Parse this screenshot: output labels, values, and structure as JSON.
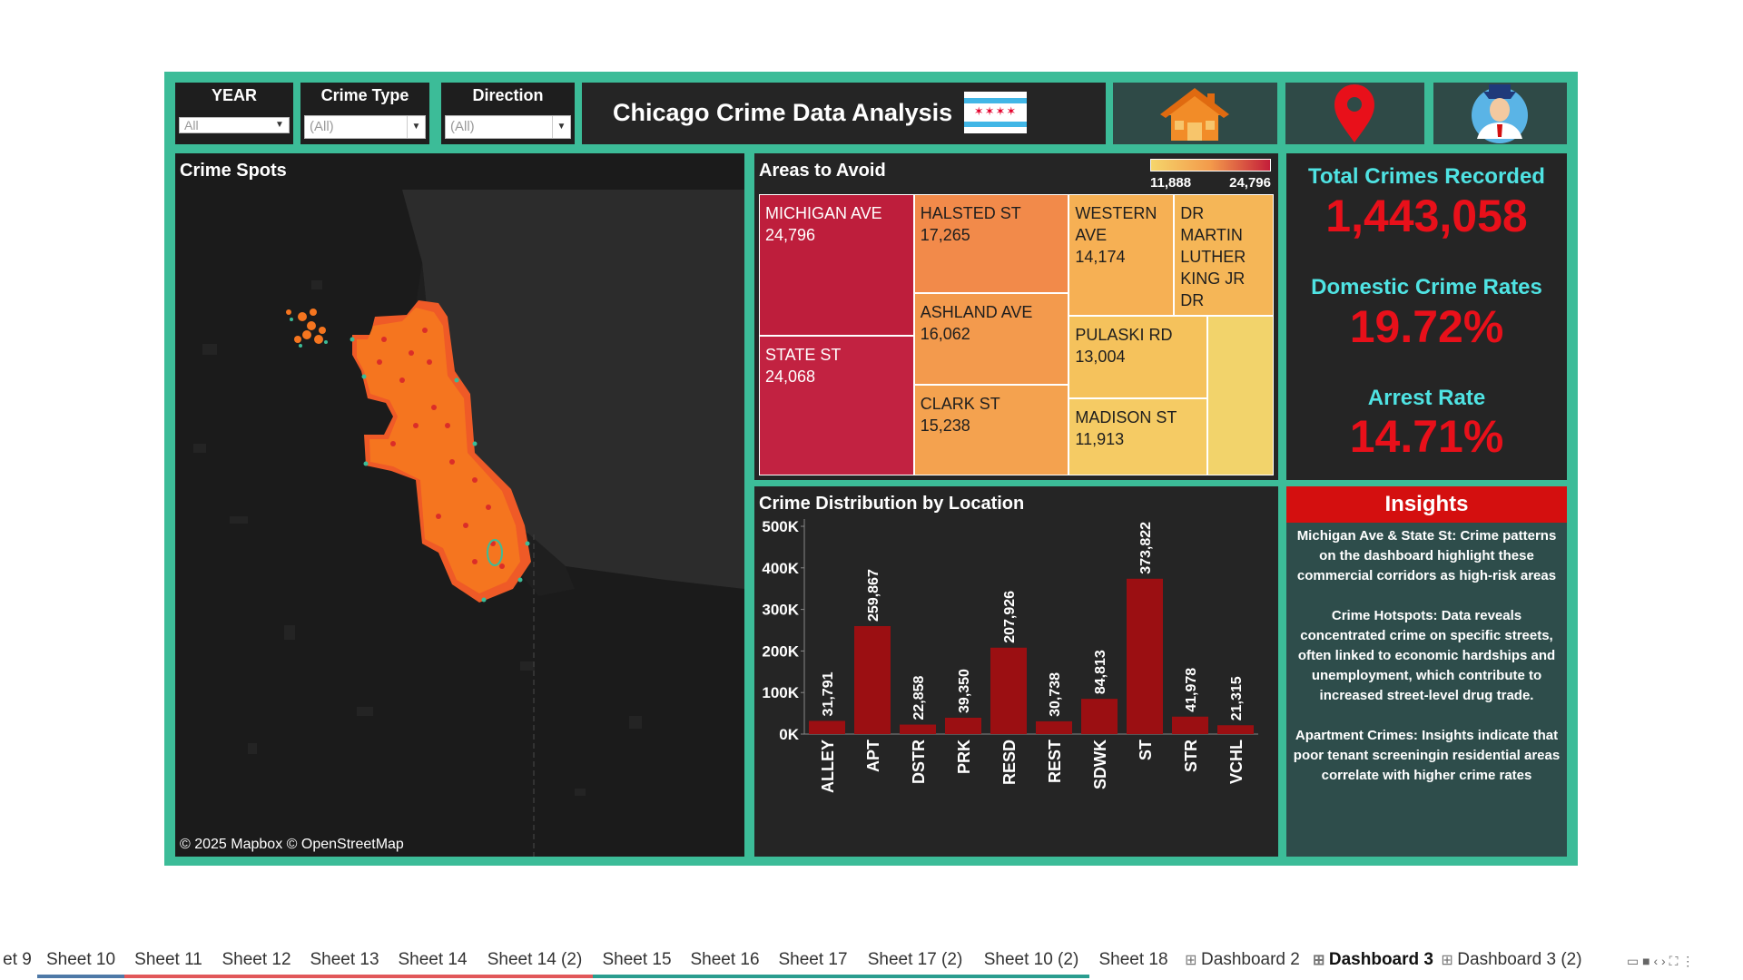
{
  "filters": [
    {
      "label": "YEAR",
      "value": "All"
    },
    {
      "label": "Crime Type",
      "value": "(All)"
    },
    {
      "label": "Direction",
      "value": "(All)"
    }
  ],
  "title": "Chicago Crime Data Analysis",
  "flag_stars": "✶✶✶✶",
  "nav_icons": [
    "home-icon",
    "map-pin-icon",
    "user-avatar-icon"
  ],
  "map": {
    "title": "Crime Spots",
    "attribution": "© 2025 Mapbox © OpenStreetMap"
  },
  "treemap": {
    "title": "Areas to Avoid",
    "legend_min": "11,888",
    "legend_max": "24,796",
    "cells": [
      {
        "name": "MICHIGAN AVE",
        "value": "24,796",
        "color": "#be1e3c"
      },
      {
        "name": "STATE ST",
        "value": "24,068",
        "color": "#c22241"
      },
      {
        "name": "HALSTED ST",
        "value": "17,265",
        "color": "#f28a4a"
      },
      {
        "name": "ASHLAND AVE",
        "value": "16,062",
        "color": "#f39a4d"
      },
      {
        "name": "CLARK ST",
        "value": "15,238",
        "color": "#f4a24f"
      },
      {
        "name": "WESTERN AVE",
        "value": "14,174",
        "color": "#f6b054"
      },
      {
        "name": "DR MARTIN LUTHER KING JR DR",
        "value": "",
        "color": "#f5b657"
      },
      {
        "name": "PULASKI RD",
        "value": "13,004",
        "color": "#f5c25c"
      },
      {
        "name": "MADISON ST",
        "value": "11,913",
        "color": "#f5cb64"
      },
      {
        "name": "",
        "value": "",
        "color": "#f2d36b"
      }
    ]
  },
  "stats": {
    "total_label": "Total Crimes Recorded",
    "total_value": "1,443,058",
    "domestic_label": "Domestic Crime Rates",
    "domestic_value": "19.72%",
    "arrest_label": "Arrest Rate",
    "arrest_value": "14.71%",
    "value_color": "#e8101a",
    "label_color": "#4fe3e3"
  },
  "chart_data": {
    "type": "bar",
    "title": "Crime Distribution by Location",
    "categories": [
      "ALLEY",
      "APT",
      "DSTR",
      "PRK",
      "RESD",
      "REST",
      "SDWK",
      "ST",
      "STR",
      "VCHL"
    ],
    "values": [
      31791,
      259867,
      22858,
      39350,
      207926,
      30738,
      84813,
      373822,
      41978,
      21315
    ],
    "value_labels": [
      "31,791",
      "259,867",
      "22,858",
      "39,350",
      "207,926",
      "30,738",
      "84,813",
      "373,822",
      "41,978",
      "21,315"
    ],
    "ylim": [
      0,
      500000
    ],
    "yticks": [
      0,
      100000,
      200000,
      300000,
      400000,
      500000
    ],
    "ytick_labels": [
      "0K",
      "100K",
      "200K",
      "300K",
      "400K",
      "500K"
    ],
    "bar_color": "#9b0f12",
    "grid": false
  },
  "insights": {
    "title": "Insights",
    "paragraphs": [
      "Michigan Ave & State St: Crime patterns on the dashboard highlight these commercial corridors as high-risk areas",
      "Crime Hotspots: Data reveals concentrated crime on specific streets, often linked to economic hardships and unemployment, which contribute to increased street-level drug trade.",
      "Apartment Crimes: Insights indicate that poor tenant screeningin residential areas correlate with higher crime rates"
    ]
  },
  "tabs": [
    {
      "label": "et 9",
      "color": "#ffffff"
    },
    {
      "label": "Sheet 10",
      "color": "#4e79a7"
    },
    {
      "label": "Sheet 11",
      "color": "#e15759"
    },
    {
      "label": "Sheet 12",
      "color": "#e15759"
    },
    {
      "label": "Sheet 13",
      "color": "#e15759"
    },
    {
      "label": "Sheet 14",
      "color": "#e15759"
    },
    {
      "label": "Sheet 14 (2)",
      "color": "#e15759"
    },
    {
      "label": "Sheet 15",
      "color": "#2a9d8f"
    },
    {
      "label": "Sheet 16",
      "color": "#2a9d8f"
    },
    {
      "label": "Sheet 17",
      "color": "#2a9d8f"
    },
    {
      "label": "Sheet 17 (2)",
      "color": "#2a9d8f"
    },
    {
      "label": "Sheet 10 (2)",
      "color": "#2a9d8f"
    },
    {
      "label": "Sheet 18",
      "color": "#ffffff"
    },
    {
      "label": "Dashboard 2",
      "color": "#ffffff"
    },
    {
      "label": "Dashboard 3",
      "color": "#ffffff"
    },
    {
      "label": "Dashboard 3 (2)",
      "color": "#ffffff"
    }
  ],
  "active_tab": "Dashboard 3"
}
